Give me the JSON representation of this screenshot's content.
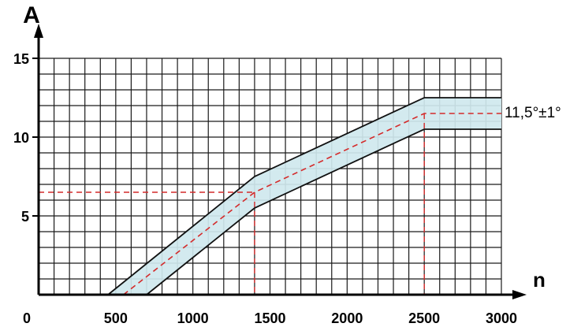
{
  "chart_data": {
    "type": "line",
    "xlabel": "n",
    "ylabel": "A",
    "xlim": [
      0,
      3000
    ],
    "ylim": [
      0,
      15
    ],
    "grid": true,
    "x_ticks": [
      {
        "value": 0,
        "label": "0"
      },
      {
        "value": 500,
        "label": "500"
      },
      {
        "value": 1000,
        "label": "1000"
      },
      {
        "value": 1500,
        "label": "1500"
      },
      {
        "value": 2000,
        "label": "2000"
      },
      {
        "value": 2500,
        "label": "2500"
      },
      {
        "value": 3000,
        "label": "3000"
      }
    ],
    "y_ticks": [
      {
        "value": 5,
        "label": "5"
      },
      {
        "value": 10,
        "label": "10"
      },
      {
        "value": 15,
        "label": "15"
      }
    ],
    "annotation": "11,5°±1°",
    "series": [
      {
        "role": "nominal",
        "style": "dashed",
        "color": "#d42a2a",
        "x": [
          550,
          1400,
          2500,
          3000
        ],
        "y": [
          0,
          6.5,
          11.5,
          11.5
        ]
      },
      {
        "role": "upper",
        "style": "solid",
        "color": "#111111",
        "x": [
          450,
          1400,
          2500,
          3000
        ],
        "y": [
          0,
          7.5,
          12.5,
          12.5
        ]
      },
      {
        "role": "lower",
        "style": "solid",
        "color": "#111111",
        "x": [
          700,
          1400,
          2500,
          3000
        ],
        "y": [
          0,
          5.5,
          10.5,
          10.5
        ]
      }
    ],
    "reference_lines": [
      {
        "x": 1400,
        "y": 6.5
      },
      {
        "x": 2500,
        "y": 11.5
      }
    ],
    "band_color": "#cfe8ee",
    "grid_color": "#1a1a1a",
    "reference_color": "#d42a2a"
  }
}
